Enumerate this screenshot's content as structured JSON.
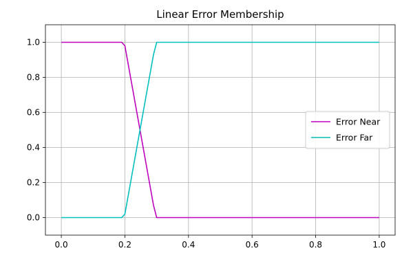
{
  "chart_data": {
    "type": "line",
    "title": "Linear Error Membership",
    "xlabel": "",
    "ylabel": "",
    "xlim": [
      -0.05,
      1.05
    ],
    "ylim": [
      -0.1,
      1.1
    ],
    "x_ticks": [
      0.0,
      0.2,
      0.4,
      0.6,
      0.8,
      1.0
    ],
    "x_tick_labels": [
      "0.0",
      "0.2",
      "0.4",
      "0.6",
      "0.8",
      "1.0"
    ],
    "y_ticks": [
      0.0,
      0.2,
      0.4,
      0.6,
      0.8,
      1.0
    ],
    "y_tick_labels": [
      "0.0",
      "0.2",
      "0.4",
      "0.6",
      "0.8",
      "1.0"
    ],
    "grid": true,
    "legend_position": "center-right",
    "series": [
      {
        "name": "Error Near",
        "color": "#bf00bf",
        "x": [
          0.0,
          0.19,
          0.2,
          0.29,
          0.3,
          1.0
        ],
        "y": [
          1.0,
          1.0,
          0.98,
          0.07,
          0.0,
          0.0
        ]
      },
      {
        "name": "Error Far",
        "color": "#00bfbf",
        "x": [
          0.0,
          0.19,
          0.2,
          0.29,
          0.3,
          1.0
        ],
        "y": [
          0.0,
          0.0,
          0.02,
          0.93,
          1.0,
          1.0
        ]
      }
    ]
  }
}
